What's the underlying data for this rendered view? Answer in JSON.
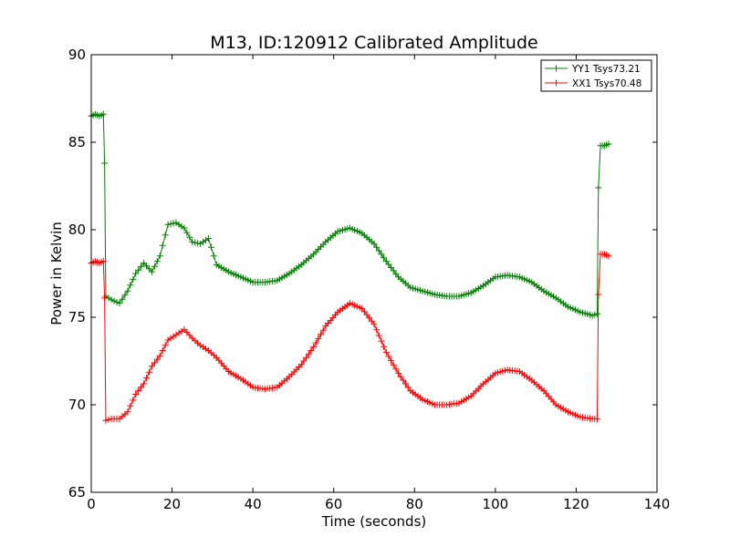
{
  "chart_data": {
    "type": "line",
    "title": "M13, ID:120912 Calibrated Amplitude",
    "xlabel": "Time (seconds)",
    "ylabel": "Power in Kelvin",
    "xlim": [
      0,
      140
    ],
    "ylim": [
      65,
      90
    ],
    "xticks": [
      "0",
      "20",
      "40",
      "60",
      "80",
      "100",
      "120",
      "140"
    ],
    "yticks": [
      "65",
      "70",
      "75",
      "80",
      "85",
      "90"
    ],
    "grid": false,
    "legend_position": "top-right",
    "marker": "+",
    "series": [
      {
        "name": "YY1 Tsys73.21",
        "color": "#008000",
        "points": [
          [
            0,
            86.5
          ],
          [
            1,
            86.6
          ],
          [
            2,
            86.5
          ],
          [
            3,
            86.6
          ],
          [
            3.3,
            83.8
          ],
          [
            3.6,
            76.2
          ],
          [
            5,
            76.0
          ],
          [
            7,
            75.8
          ],
          [
            9,
            76.5
          ],
          [
            11,
            77.5
          ],
          [
            13,
            78.1
          ],
          [
            15,
            77.6
          ],
          [
            17,
            78.5
          ],
          [
            19,
            80.3
          ],
          [
            21,
            80.4
          ],
          [
            23,
            80.1
          ],
          [
            25,
            79.3
          ],
          [
            27,
            79.2
          ],
          [
            29,
            79.5
          ],
          [
            31,
            78.0
          ],
          [
            34,
            77.6
          ],
          [
            37,
            77.3
          ],
          [
            40,
            77.0
          ],
          [
            43,
            77.0
          ],
          [
            46,
            77.1
          ],
          [
            49,
            77.5
          ],
          [
            52,
            78.0
          ],
          [
            55,
            78.6
          ],
          [
            58,
            79.3
          ],
          [
            61,
            79.9
          ],
          [
            64,
            80.1
          ],
          [
            67,
            79.8
          ],
          [
            70,
            79.2
          ],
          [
            73,
            78.2
          ],
          [
            76,
            77.3
          ],
          [
            79,
            76.7
          ],
          [
            82,
            76.5
          ],
          [
            85,
            76.3
          ],
          [
            88,
            76.2
          ],
          [
            91,
            76.2
          ],
          [
            94,
            76.4
          ],
          [
            97,
            76.8
          ],
          [
            100,
            77.3
          ],
          [
            103,
            77.4
          ],
          [
            106,
            77.3
          ],
          [
            109,
            77.0
          ],
          [
            112,
            76.5
          ],
          [
            115,
            76.1
          ],
          [
            118,
            75.6
          ],
          [
            121,
            75.3
          ],
          [
            124,
            75.1
          ],
          [
            125.2,
            75.2
          ],
          [
            125.5,
            82.4
          ],
          [
            126,
            84.8
          ],
          [
            127,
            84.8
          ],
          [
            128,
            84.9
          ]
        ]
      },
      {
        "name": "XX1 Tsys70.48",
        "color": "#ff0000",
        "points": [
          [
            0,
            78.1
          ],
          [
            1,
            78.2
          ],
          [
            2,
            78.1
          ],
          [
            3,
            78.2
          ],
          [
            3.3,
            76.1
          ],
          [
            3.6,
            69.1
          ],
          [
            5,
            69.2
          ],
          [
            7,
            69.2
          ],
          [
            9,
            69.6
          ],
          [
            11,
            70.6
          ],
          [
            13,
            71.2
          ],
          [
            15,
            72.2
          ],
          [
            17,
            72.8
          ],
          [
            19,
            73.7
          ],
          [
            21,
            74.0
          ],
          [
            23,
            74.3
          ],
          [
            25,
            73.8
          ],
          [
            27,
            73.4
          ],
          [
            29,
            73.1
          ],
          [
            31,
            72.7
          ],
          [
            34,
            71.9
          ],
          [
            37,
            71.5
          ],
          [
            40,
            71.0
          ],
          [
            43,
            70.9
          ],
          [
            46,
            71.0
          ],
          [
            49,
            71.6
          ],
          [
            52,
            72.3
          ],
          [
            55,
            73.3
          ],
          [
            58,
            74.5
          ],
          [
            61,
            75.3
          ],
          [
            64,
            75.8
          ],
          [
            67,
            75.5
          ],
          [
            70,
            74.6
          ],
          [
            73,
            73.0
          ],
          [
            76,
            71.8
          ],
          [
            79,
            70.8
          ],
          [
            82,
            70.3
          ],
          [
            85,
            70.0
          ],
          [
            88,
            70.0
          ],
          [
            91,
            70.1
          ],
          [
            94,
            70.5
          ],
          [
            97,
            71.2
          ],
          [
            100,
            71.8
          ],
          [
            103,
            72.0
          ],
          [
            106,
            71.9
          ],
          [
            109,
            71.4
          ],
          [
            112,
            70.8
          ],
          [
            115,
            70.0
          ],
          [
            118,
            69.6
          ],
          [
            121,
            69.3
          ],
          [
            124,
            69.2
          ],
          [
            125.2,
            69.2
          ],
          [
            125.5,
            76.3
          ],
          [
            126,
            78.6
          ],
          [
            127,
            78.6
          ],
          [
            128,
            78.5
          ]
        ]
      }
    ]
  }
}
